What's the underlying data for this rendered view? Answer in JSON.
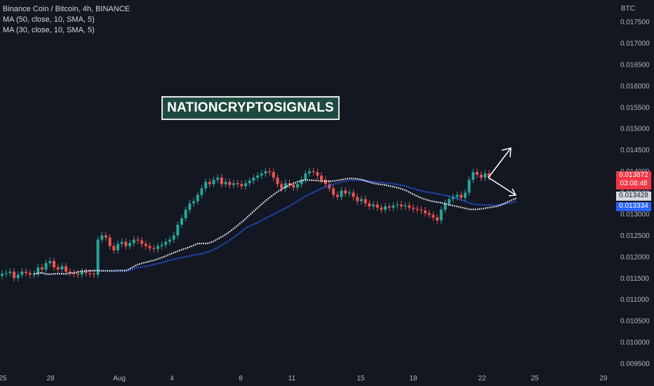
{
  "legend": {
    "symbol": "Binance Coin / Bitcoin, 4h, BINANCE",
    "ma1": "MA (50, close, 10, SMA, 5)",
    "ma2": "MA (30, close, 10, SMA, 5)"
  },
  "watermark": "NATIONCRYPTOSIGNALS",
  "price_tags": {
    "current_price": "0.013872",
    "countdown": "03:08:48",
    "ma_white": "0.013428",
    "ma_blue": "0.013334"
  },
  "colors": {
    "background": "#131722",
    "up": "#26a69a",
    "down": "#ef5350",
    "ma_white": "#ffffff",
    "ma_blue": "#2962ff",
    "tag_red": "#f23645",
    "tag_white_bg": "#d6d8de",
    "tag_blue": "#2962ff"
  },
  "chart_data": {
    "type": "candlestick",
    "title": "Binance Coin / Bitcoin, 4h, BINANCE",
    "y_unit": "BTC",
    "ylim": [
      0.0093,
      0.0181
    ],
    "y_ticks": [
      "0.017500",
      "0.017000",
      "0.016500",
      "0.016000",
      "0.015500",
      "0.015000",
      "0.014500",
      "0.014000",
      "0.013500",
      "0.013000",
      "0.012500",
      "0.012000",
      "0.011500",
      "0.011000",
      "0.010500",
      "0.010000",
      "0.009500"
    ],
    "x_ticks": [
      "25",
      "28",
      "Aug",
      "4",
      "8",
      "11",
      "15",
      "18",
      "22",
      "25",
      "29"
    ],
    "grid": false,
    "close_series": [
      0.0116,
      0.01162,
      0.01165,
      0.0115,
      0.01158,
      0.01165,
      0.01162,
      0.01158,
      0.0116,
      0.01175,
      0.0117,
      0.01185,
      0.0119,
      0.01175,
      0.0117,
      0.01178,
      0.01165,
      0.01162,
      0.0116,
      0.01158,
      0.01165,
      0.01162,
      0.0116,
      0.01158,
      0.0124,
      0.0125,
      0.01245,
      0.01225,
      0.01215,
      0.0123,
      0.01235,
      0.01225,
      0.01232,
      0.0124,
      0.01238,
      0.0123,
      0.01225,
      0.0122,
      0.01218,
      0.01225,
      0.01228,
      0.01235,
      0.0124,
      0.0125,
      0.01275,
      0.0129,
      0.0131,
      0.01325,
      0.0133,
      0.01345,
      0.0136,
      0.01375,
      0.0137,
      0.0138,
      0.01385,
      0.0137,
      0.01375,
      0.01368,
      0.01372,
      0.0137,
      0.01365,
      0.01372,
      0.01378,
      0.01385,
      0.0139,
      0.01395,
      0.014,
      0.01398,
      0.01385,
      0.0137,
      0.0136,
      0.01372,
      0.01368,
      0.01362,
      0.0137,
      0.0138,
      0.01395,
      0.014,
      0.01398,
      0.0139,
      0.0138,
      0.0137,
      0.0136,
      0.01345,
      0.0134,
      0.01355,
      0.01348,
      0.0135,
      0.0134,
      0.0133,
      0.01335,
      0.01325,
      0.01318,
      0.01322,
      0.01315,
      0.0131,
      0.01318,
      0.01315,
      0.0132,
      0.01322,
      0.01318,
      0.0132,
      0.01315,
      0.01312,
      0.0131,
      0.01308,
      0.01302,
      0.01298,
      0.01292,
      0.01285,
      0.0131,
      0.01325,
      0.01335,
      0.0134,
      0.01345,
      0.01338,
      0.0135,
      0.0138,
      0.01398,
      0.01392,
      0.01385,
      0.01395,
      0.01387
    ],
    "open_series": [
      0.01155,
      0.0116,
      0.01162,
      0.01165,
      0.0115,
      0.01158,
      0.01165,
      0.01162,
      0.01158,
      0.0116,
      0.01175,
      0.0117,
      0.01185,
      0.0119,
      0.01175,
      0.0117,
      0.01178,
      0.01165,
      0.01162,
      0.0116,
      0.01158,
      0.01165,
      0.01162,
      0.0116,
      0.01158,
      0.0124,
      0.0125,
      0.01245,
      0.01225,
      0.01215,
      0.0123,
      0.01235,
      0.01225,
      0.01232,
      0.0124,
      0.01238,
      0.0123,
      0.01225,
      0.0122,
      0.01218,
      0.01225,
      0.01228,
      0.01235,
      0.0124,
      0.0125,
      0.01275,
      0.0129,
      0.0131,
      0.01325,
      0.0133,
      0.01345,
      0.0136,
      0.01375,
      0.0137,
      0.0138,
      0.01385,
      0.0137,
      0.01375,
      0.01368,
      0.01372,
      0.0137,
      0.01365,
      0.01372,
      0.01378,
      0.01385,
      0.0139,
      0.01395,
      0.014,
      0.01398,
      0.01385,
      0.0137,
      0.0136,
      0.01372,
      0.01368,
      0.01362,
      0.0137,
      0.0138,
      0.01395,
      0.014,
      0.01398,
      0.0139,
      0.0138,
      0.0137,
      0.0136,
      0.01345,
      0.0134,
      0.01355,
      0.01348,
      0.0135,
      0.0134,
      0.0133,
      0.01335,
      0.01325,
      0.01318,
      0.01322,
      0.01315,
      0.0131,
      0.01318,
      0.01315,
      0.0132,
      0.01322,
      0.01318,
      0.0132,
      0.01315,
      0.01312,
      0.0131,
      0.01308,
      0.01302,
      0.01298,
      0.01292,
      0.01285,
      0.0131,
      0.01325,
      0.01335,
      0.0134,
      0.01345,
      0.01338,
      0.0135,
      0.0138,
      0.01398,
      0.01392,
      0.01385,
      0.01395
    ],
    "series": [
      {
        "name": "MA (50, close, 10, SMA, 5)",
        "color": "white"
      },
      {
        "name": "MA (30, close, 10, SMA, 5)",
        "color": "blue"
      }
    ]
  }
}
